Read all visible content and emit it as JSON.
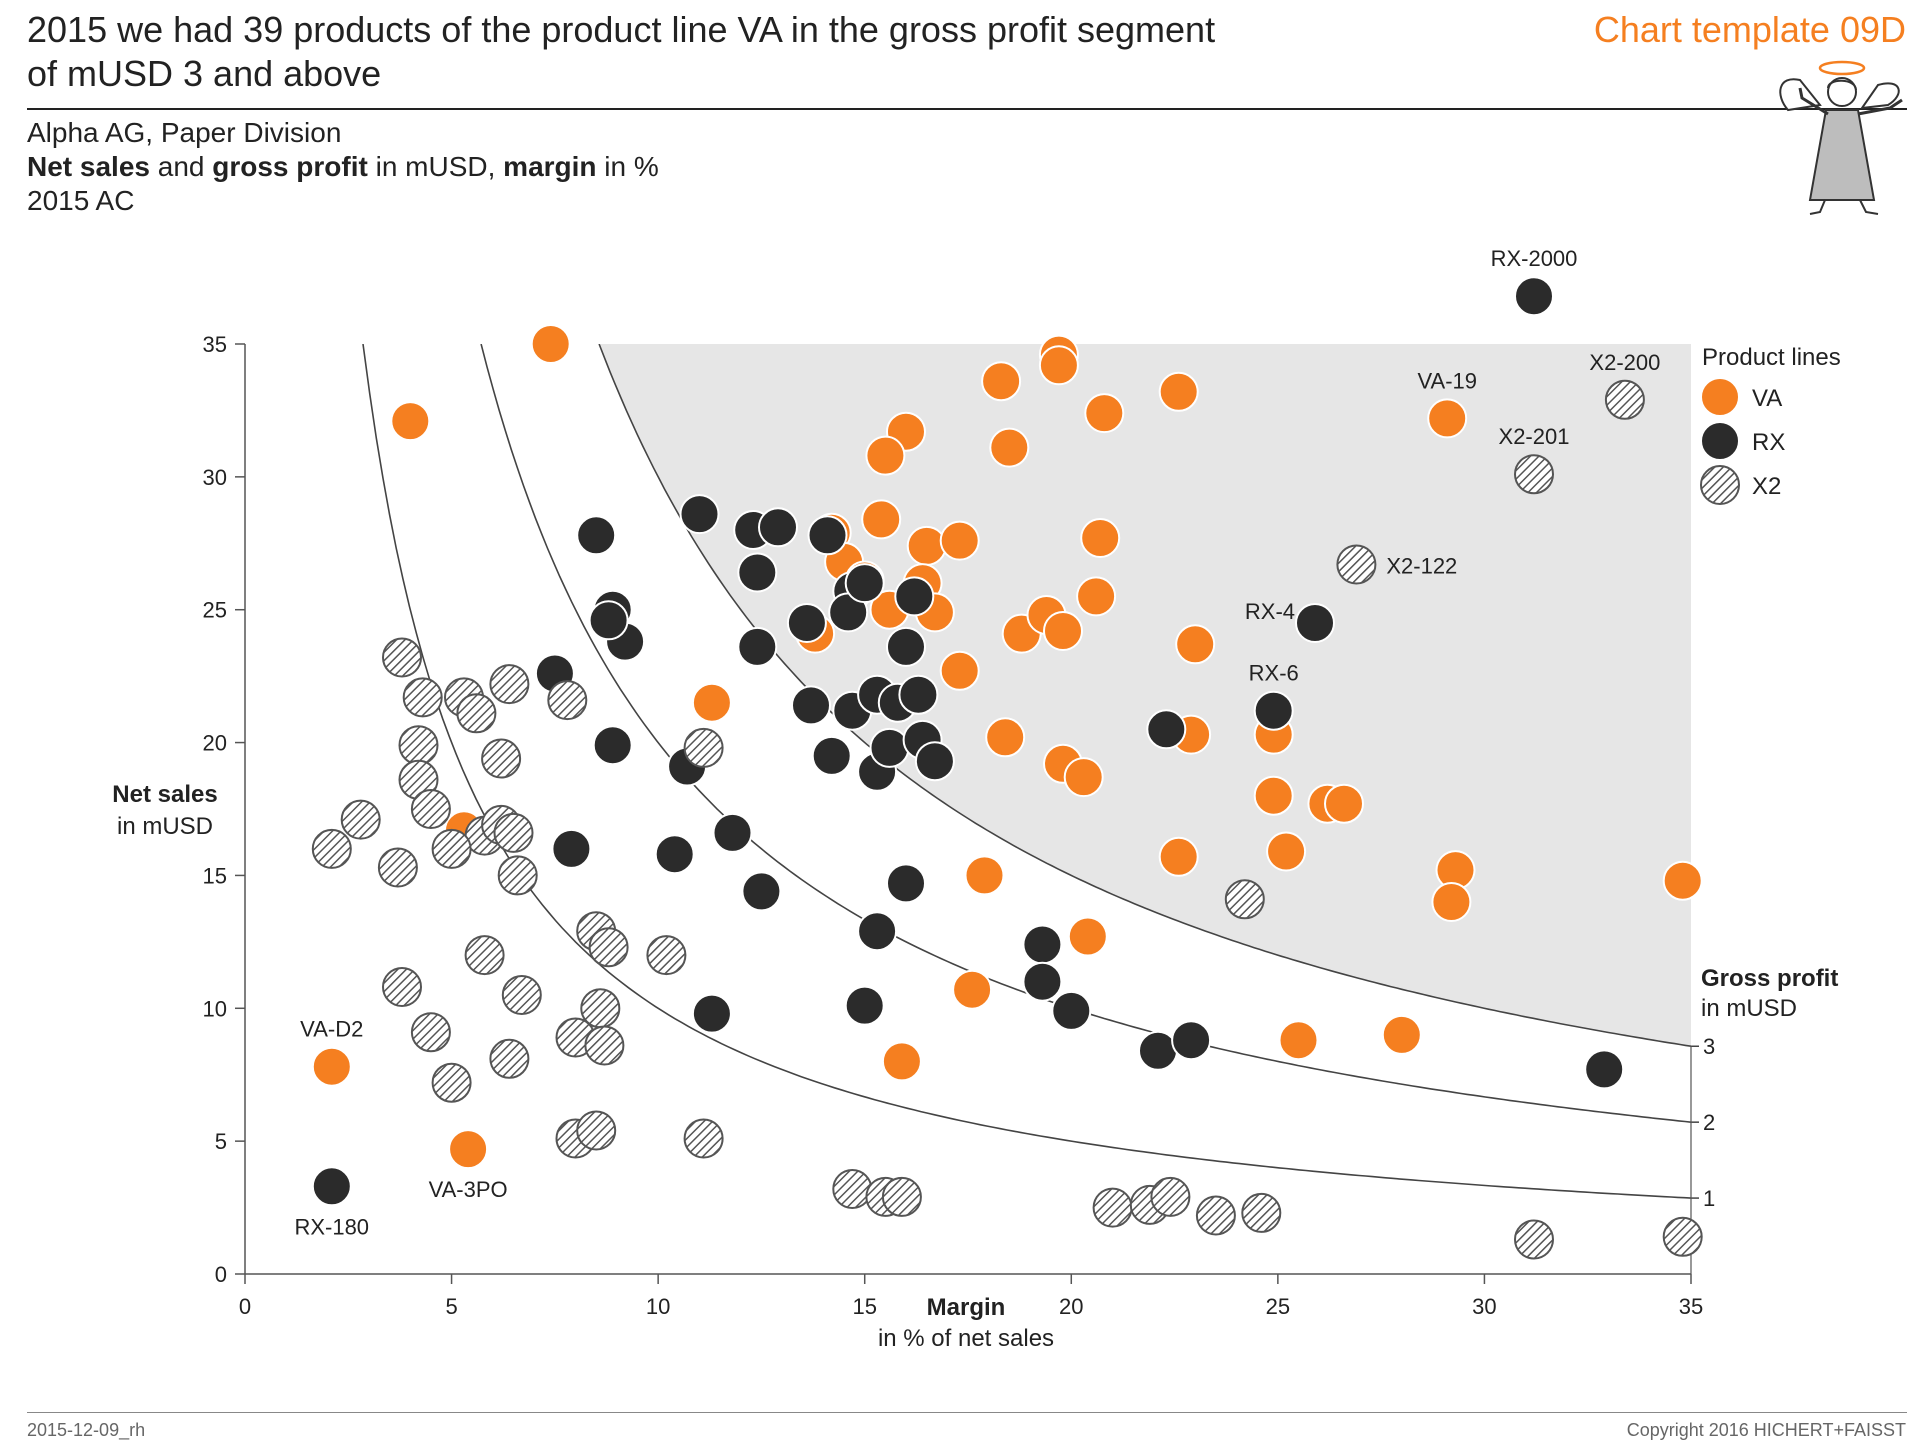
{
  "header": {
    "title_line1": "2015 we had 39 products of the product line VA in the gross profit segment",
    "title_line2": "of mUSD 3 and above",
    "template": "Chart template 09D",
    "company": "Alpha AG, Paper Division",
    "measure_net_sales": "Net sales",
    "measure_and": " and ",
    "measure_gross_profit": "gross profit",
    "measure_unit1": " in mUSD, ",
    "measure_margin": "margin",
    "measure_unit2": " in %",
    "scenario": "2015 AC"
  },
  "footer": {
    "date": "2015-12-09_rh",
    "copyright": "Copyright 2016 HICHERT+FAISST"
  },
  "colors": {
    "va": "#f57f20",
    "rx": "#2b2b2b",
    "x2_stroke": "#555555",
    "shade": "#e6e6e6",
    "accent": "#f57f20"
  },
  "chart_data": {
    "type": "scatter",
    "xlabel": "Margin",
    "xlabel_sub": "in % of net sales",
    "ylabel": "Net sales",
    "ylabel_sub": "in mUSD",
    "xlim": [
      0,
      35
    ],
    "ylim": [
      0,
      35
    ],
    "xticks": [
      0,
      5,
      10,
      15,
      20,
      25,
      30,
      35
    ],
    "yticks": [
      0,
      5,
      10,
      15,
      20,
      25,
      30,
      35
    ],
    "legend_title": "Product lines",
    "legend": [
      "VA",
      "RX",
      "X2"
    ],
    "isolines_title": "Gross profit",
    "isolines_title_sub": "in mUSD",
    "isolines": [
      1,
      2,
      3
    ],
    "shaded_segment": "gross profit 3 and above",
    "series": [
      {
        "name": "VA",
        "points": [
          [
            7.4,
            35
          ],
          [
            4.0,
            32.1
          ],
          [
            19.7,
            34.6
          ],
          [
            19.7,
            34.2
          ],
          [
            18.3,
            33.6
          ],
          [
            22.6,
            33.2
          ],
          [
            20.8,
            32.4
          ],
          [
            18.5,
            31.1
          ],
          [
            16.0,
            31.7
          ],
          [
            15.5,
            30.8
          ],
          [
            15.4,
            28.4
          ],
          [
            14.2,
            27.9
          ],
          [
            16.5,
            27.4
          ],
          [
            17.3,
            27.6
          ],
          [
            20.7,
            27.7
          ],
          [
            14.5,
            26.8
          ],
          [
            15.0,
            26.1
          ],
          [
            16.4,
            26.0
          ],
          [
            15.6,
            25.0
          ],
          [
            16.7,
            24.9
          ],
          [
            20.6,
            25.5
          ],
          [
            13.8,
            24.1
          ],
          [
            18.8,
            24.1
          ],
          [
            19.4,
            24.8
          ],
          [
            19.8,
            24.2
          ],
          [
            23.0,
            23.7
          ],
          [
            17.3,
            22.7
          ],
          [
            11.3,
            21.5
          ],
          [
            18.4,
            20.2
          ],
          [
            22.9,
            20.3
          ],
          [
            24.9,
            20.3
          ],
          [
            19.8,
            19.2
          ],
          [
            20.3,
            18.7
          ],
          [
            24.9,
            18.0
          ],
          [
            26.2,
            17.7
          ],
          [
            26.6,
            17.7
          ],
          [
            5.3,
            16.7
          ],
          [
            22.6,
            15.7
          ],
          [
            25.2,
            15.9
          ],
          [
            29.3,
            15.2
          ],
          [
            29.2,
            14.0
          ],
          [
            34.8,
            14.8
          ],
          [
            17.9,
            15.0
          ],
          [
            20.4,
            12.7
          ],
          [
            17.6,
            10.7
          ],
          [
            15.9,
            8.0
          ],
          [
            25.5,
            8.8
          ],
          [
            28.0,
            9.0
          ],
          [
            2.1,
            7.8
          ],
          [
            5.4,
            4.7
          ],
          [
            29.1,
            32.2
          ]
        ]
      },
      {
        "name": "RX",
        "points": [
          [
            31.2,
            36.8
          ],
          [
            25.9,
            24.5
          ],
          [
            24.9,
            21.2
          ],
          [
            8.5,
            27.8
          ],
          [
            11.0,
            28.6
          ],
          [
            12.3,
            28.0
          ],
          [
            12.9,
            28.1
          ],
          [
            14.1,
            27.8
          ],
          [
            12.4,
            26.4
          ],
          [
            14.7,
            25.7
          ],
          [
            14.6,
            24.9
          ],
          [
            15.0,
            26.0
          ],
          [
            16.2,
            25.5
          ],
          [
            13.6,
            24.5
          ],
          [
            8.9,
            25.0
          ],
          [
            9.2,
            23.8
          ],
          [
            8.8,
            24.6
          ],
          [
            12.4,
            23.6
          ],
          [
            16.0,
            23.6
          ],
          [
            7.5,
            22.6
          ],
          [
            13.7,
            21.4
          ],
          [
            14.7,
            21.2
          ],
          [
            15.3,
            21.8
          ],
          [
            15.8,
            21.5
          ],
          [
            16.3,
            21.8
          ],
          [
            8.9,
            19.9
          ],
          [
            10.7,
            19.1
          ],
          [
            14.2,
            19.5
          ],
          [
            15.3,
            18.9
          ],
          [
            15.6,
            19.8
          ],
          [
            16.4,
            20.1
          ],
          [
            16.7,
            19.3
          ],
          [
            22.3,
            20.5
          ],
          [
            7.9,
            16.0
          ],
          [
            10.4,
            15.8
          ],
          [
            11.8,
            16.6
          ],
          [
            12.5,
            14.4
          ],
          [
            16.0,
            14.7
          ],
          [
            15.3,
            12.9
          ],
          [
            19.3,
            12.4
          ],
          [
            19.3,
            11.0
          ],
          [
            20.0,
            9.9
          ],
          [
            15.0,
            10.1
          ],
          [
            11.3,
            9.8
          ],
          [
            22.1,
            8.4
          ],
          [
            22.9,
            8.8
          ],
          [
            32.9,
            7.7
          ],
          [
            2.1,
            3.3
          ]
        ]
      },
      {
        "name": "X2",
        "points": [
          [
            33.4,
            32.9
          ],
          [
            31.2,
            30.1
          ],
          [
            26.9,
            26.7
          ],
          [
            3.8,
            23.2
          ],
          [
            4.3,
            21.7
          ],
          [
            5.3,
            21.7
          ],
          [
            5.6,
            21.1
          ],
          [
            6.4,
            22.2
          ],
          [
            7.8,
            21.6
          ],
          [
            4.2,
            19.9
          ],
          [
            4.2,
            18.6
          ],
          [
            4.5,
            17.5
          ],
          [
            6.2,
            19.4
          ],
          [
            11.1,
            19.8
          ],
          [
            2.8,
            17.1
          ],
          [
            2.1,
            16.0
          ],
          [
            5.8,
            16.5
          ],
          [
            6.2,
            16.9
          ],
          [
            6.5,
            16.6
          ],
          [
            5.0,
            16.0
          ],
          [
            3.7,
            15.3
          ],
          [
            6.6,
            15.0
          ],
          [
            5.8,
            12.0
          ],
          [
            8.5,
            12.9
          ],
          [
            8.8,
            12.3
          ],
          [
            10.2,
            12.0
          ],
          [
            3.8,
            10.8
          ],
          [
            6.7,
            10.5
          ],
          [
            4.5,
            9.1
          ],
          [
            8.0,
            8.9
          ],
          [
            8.6,
            10.0
          ],
          [
            8.7,
            8.6
          ],
          [
            6.4,
            8.1
          ],
          [
            5.0,
            7.2
          ],
          [
            8.0,
            5.1
          ],
          [
            8.5,
            5.4
          ],
          [
            11.1,
            5.1
          ],
          [
            14.7,
            3.2
          ],
          [
            15.5,
            2.9
          ],
          [
            15.9,
            2.9
          ],
          [
            21.0,
            2.5
          ],
          [
            21.9,
            2.6
          ],
          [
            22.4,
            2.9
          ],
          [
            23.5,
            2.2
          ],
          [
            24.6,
            2.3
          ],
          [
            24.2,
            14.1
          ],
          [
            31.2,
            1.3
          ],
          [
            34.8,
            1.4
          ]
        ]
      }
    ],
    "annotations": [
      {
        "text": "RX-2000",
        "x": 31.2,
        "y": 36.8,
        "pos": "above"
      },
      {
        "text": "VA-19",
        "x": 29.1,
        "y": 32.2,
        "pos": "above"
      },
      {
        "text": "X2-200",
        "x": 33.4,
        "y": 32.9,
        "pos": "above"
      },
      {
        "text": "X2-201",
        "x": 31.2,
        "y": 30.1,
        "pos": "above"
      },
      {
        "text": "X2-122",
        "x": 26.9,
        "y": 26.7,
        "pos": "right"
      },
      {
        "text": "RX-4",
        "x": 25.9,
        "y": 24.5,
        "pos": "upper-left"
      },
      {
        "text": "RX-6",
        "x": 24.9,
        "y": 21.2,
        "pos": "above"
      },
      {
        "text": "VA-D2",
        "x": 2.1,
        "y": 7.8,
        "pos": "above"
      },
      {
        "text": "VA-3PO",
        "x": 5.4,
        "y": 4.7,
        "pos": "below"
      },
      {
        "text": "RX-180",
        "x": 2.1,
        "y": 3.3,
        "pos": "below"
      }
    ]
  }
}
